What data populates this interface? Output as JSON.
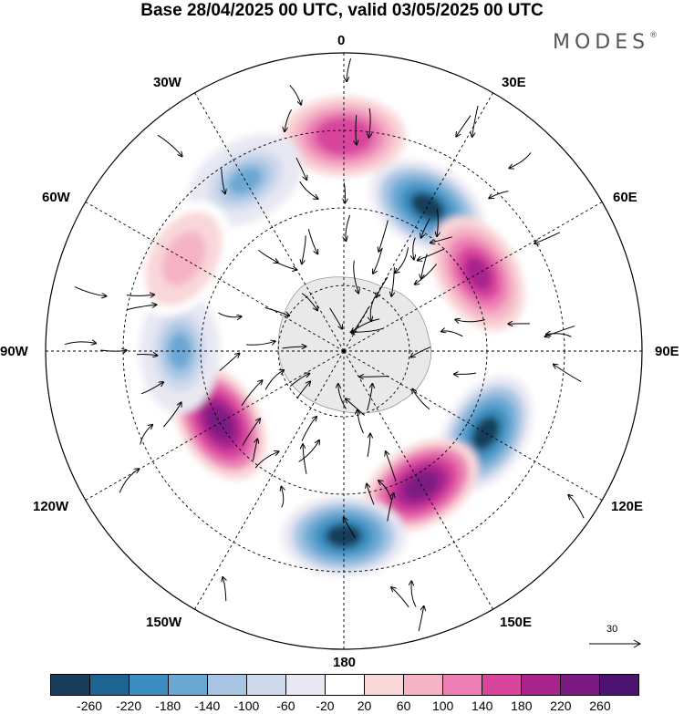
{
  "title": "Base 28/04/2025 00 UTC, valid 03/05/2025 00 UTC",
  "brand": {
    "name": "MODES",
    "mark": "®"
  },
  "map": {
    "projection": "polar stereographic (south pole centered)",
    "longitude_labels": [
      "0",
      "30E",
      "60E",
      "90E",
      "120E",
      "150E",
      "180",
      "150W",
      "120W",
      "90W",
      "60W",
      "30W"
    ],
    "background_land_color": "#eeeeee",
    "anomaly_centers": [
      {
        "lon_label": "0",
        "sign": "positive",
        "value": 180
      },
      {
        "lon_label": "30E",
        "sign": "negative",
        "value": -260
      },
      {
        "lon_label": "60E",
        "sign": "positive",
        "value": 220
      },
      {
        "lon_label": "120E",
        "sign": "negative",
        "value": -260
      },
      {
        "lon_label": "150E",
        "sign": "positive",
        "value": 260
      },
      {
        "lon_label": "180",
        "sign": "negative",
        "value": -260
      },
      {
        "lon_label": "120W",
        "sign": "positive",
        "value": 260
      },
      {
        "lon_label": "90W",
        "sign": "negative",
        "value": -140
      },
      {
        "lon_label": "30W",
        "sign": "negative",
        "value": -140
      },
      {
        "lon_label": "60W",
        "sign": "positive",
        "value": 100
      }
    ]
  },
  "reference_vector": {
    "label": "30"
  },
  "colorbar": {
    "labels": [
      "-260",
      "-220",
      "-180",
      "-140",
      "-100",
      "-60",
      "-20",
      "20",
      "60",
      "100",
      "140",
      "180",
      "220",
      "260"
    ],
    "colors": [
      "#173d5a",
      "#1d6590",
      "#3b8ec0",
      "#6aa8d3",
      "#a7c5e3",
      "#cfd9ec",
      "#e8e8f3",
      "#ffffff",
      "#f9d7d8",
      "#f5b3c5",
      "#ec7fb4",
      "#d8459d",
      "#a9238d",
      "#7a1a82",
      "#4c1470"
    ]
  }
}
